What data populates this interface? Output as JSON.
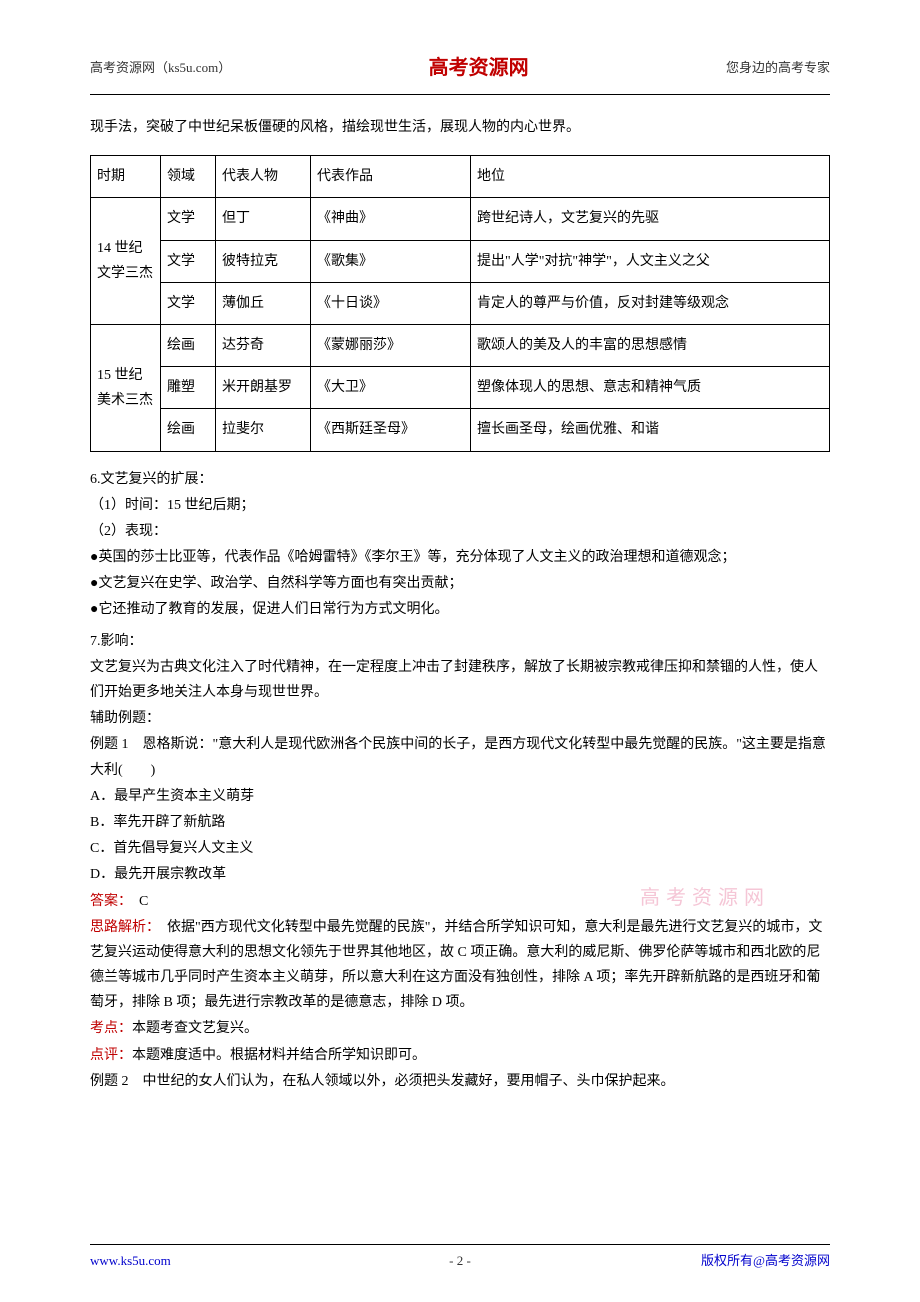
{
  "header": {
    "left": "高考资源网（ks5u.com）",
    "center": "高考资源网",
    "right": "您身边的高考专家"
  },
  "intro": "现手法，突破了中世纪呆板僵硬的风格，描绘现世生活，展现人物的内心世界。",
  "table": {
    "headers": [
      "时期",
      "领域",
      "代表人物",
      "代表作品",
      "地位"
    ],
    "rows": [
      {
        "period": "14 世纪文学三杰",
        "field": "文学",
        "person": "但丁",
        "work": "《神曲》",
        "status": "跨世纪诗人，文艺复兴的先驱"
      },
      {
        "period": "",
        "field": "文学",
        "person": "彼特拉克",
        "work": "《歌集》",
        "status": "提出\"人学\"对抗\"神学\"，人文主义之父"
      },
      {
        "period": "",
        "field": "文学",
        "person": "薄伽丘",
        "work": "《十日谈》",
        "status": "肯定人的尊严与价值，反对封建等级观念"
      },
      {
        "period": "15 世纪美术三杰",
        "field": "绘画",
        "person": "达芬奇",
        "work": "《蒙娜丽莎》",
        "status": "歌颂人的美及人的丰富的思想感情"
      },
      {
        "period": "",
        "field": "雕塑",
        "person": "米开朗基罗",
        "work": "《大卫》",
        "status": "塑像体现人的思想、意志和精神气质"
      },
      {
        "period": "",
        "field": "绘画",
        "person": "拉斐尔",
        "work": "《西斯廷圣母》",
        "status": "擅长画圣母，绘画优雅、和谐"
      }
    ]
  },
  "section6": {
    "title": "6.文艺复兴的扩展：",
    "item1": "（1）时间：15 世纪后期；",
    "item2": "（2）表现：",
    "bullet1": "●英国的莎士比亚等，代表作品《哈姆雷特》《李尔王》等，充分体现了人文主义的政治理想和道德观念；",
    "bullet2": "●文艺复兴在史学、政治学、自然科学等方面也有突出贡献；",
    "bullet3": "●它还推动了教育的发展，促进人们日常行为方式文明化。"
  },
  "section7": {
    "title": "7.影响：",
    "content": "文艺复兴为古典文化注入了时代精神，在一定程度上冲击了封建秩序，解放了长期被宗教戒律压抑和禁锢的人性，使人们开始更多地关注人本身与现世世界。"
  },
  "examples": {
    "title": "辅助例题：",
    "example1": {
      "question": "例题 1　恩格斯说：\"意大利人是现代欧洲各个民族中间的长子，是西方现代文化转型中最先觉醒的民族。\"这主要是指意大利(　　)",
      "optionA": "A．最早产生资本主义萌芽",
      "optionB": "B．率先开辟了新航路",
      "optionC": "C．首先倡导复兴人文主义",
      "optionD": "D．最先开展宗教改革",
      "answerLabel": "答案：",
      "answer": "　C",
      "analysisLabel": "思路解析：",
      "analysis": "　依据\"西方现代文化转型中最先觉醒的民族\"，并结合所学知识可知，意大利是最先进行文艺复兴的城市，文艺复兴运动使得意大利的思想文化领先于世界其他地区，故 C 项正确。意大利的威尼斯、佛罗伦萨等城市和西北欧的尼德兰等城市几乎同时产生资本主义萌芽，所以意大利在这方面没有独创性，排除 A 项；率先开辟新航路的是西班牙和葡萄牙，排除 B 项；最先进行宗教改革的是德意志，排除 D 项。",
      "pointLabel": "考点：",
      "point": "本题考查文艺复兴。",
      "commentLabel": "点评：",
      "comment": "本题难度适中。根据材料并结合所学知识即可。"
    },
    "example2": {
      "question": "例题 2　中世纪的女人们认为，在私人领域以外，必须把头发藏好，要用帽子、头巾保护起来。"
    }
  },
  "watermark": "高考资源网",
  "footer": {
    "left": "www.ks5u.com",
    "center": "- 2 -",
    "right": "版权所有@高考资源网"
  }
}
